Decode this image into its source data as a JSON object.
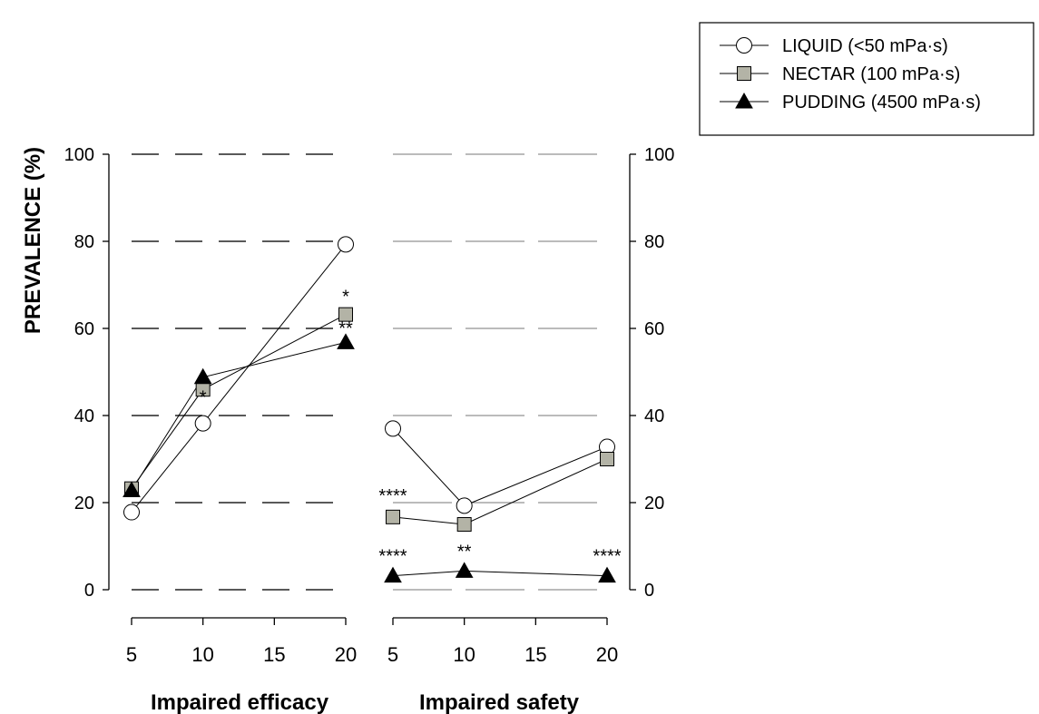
{
  "chart_data": {
    "type": "line",
    "ylabel": "PREVALENCE (%)",
    "ylim": [
      0,
      100
    ],
    "yticks": [
      0,
      20,
      40,
      60,
      80,
      100
    ],
    "xticks": [
      5,
      10,
      15,
      20
    ],
    "grid": "horizontal dashed",
    "legend_position": "top-right",
    "series_styles": [
      {
        "name": "LIQUID (<50 mPa·s)",
        "marker": "circle",
        "fill": "#ffffff"
      },
      {
        "name": "NECTAR (100 mPa·s)",
        "marker": "square",
        "fill": "#b3b3a6"
      },
      {
        "name": "PUDDING (4500 mPa·s)",
        "marker": "triangle",
        "fill": "#000000"
      }
    ],
    "panels": [
      {
        "xlabel": "Impaired efficacy",
        "x": [
          5,
          10,
          20
        ],
        "series": [
          {
            "name": "LIQUID (<50 mPa·s)",
            "values": [
              17.8,
              38.2,
              79.3
            ]
          },
          {
            "name": "NECTAR (100 mPa·s)",
            "values": [
              23.2,
              46.0,
              63.2
            ]
          },
          {
            "name": "PUDDING (4500 mPa·s)",
            "values": [
              22.8,
              48.8,
              56.8
            ]
          }
        ],
        "annotations": [
          {
            "text": "*",
            "x": 10,
            "y": 38.2
          },
          {
            "text": "*",
            "x": 20,
            "y": 63.2
          },
          {
            "text": "**",
            "x": 20,
            "y": 56.8
          }
        ]
      },
      {
        "xlabel": "Impaired safety",
        "x": [
          5,
          10,
          20
        ],
        "series": [
          {
            "name": "LIQUID (<50 mPa·s)",
            "values": [
              37.0,
              19.3,
              32.8
            ]
          },
          {
            "name": "NECTAR (100 mPa·s)",
            "values": [
              16.7,
              15.0,
              30.0
            ]
          },
          {
            "name": "PUDDING (4500 mPa·s)",
            "values": [
              3.2,
              4.3,
              3.2
            ]
          }
        ],
        "annotations": [
          {
            "text": "****",
            "x": 5,
            "y": 16.7
          },
          {
            "text": "****",
            "x": 5,
            "y": 3.2
          },
          {
            "text": "**",
            "x": 10,
            "y": 4.3
          },
          {
            "text": "****",
            "x": 20,
            "y": 3.2
          }
        ]
      }
    ]
  }
}
